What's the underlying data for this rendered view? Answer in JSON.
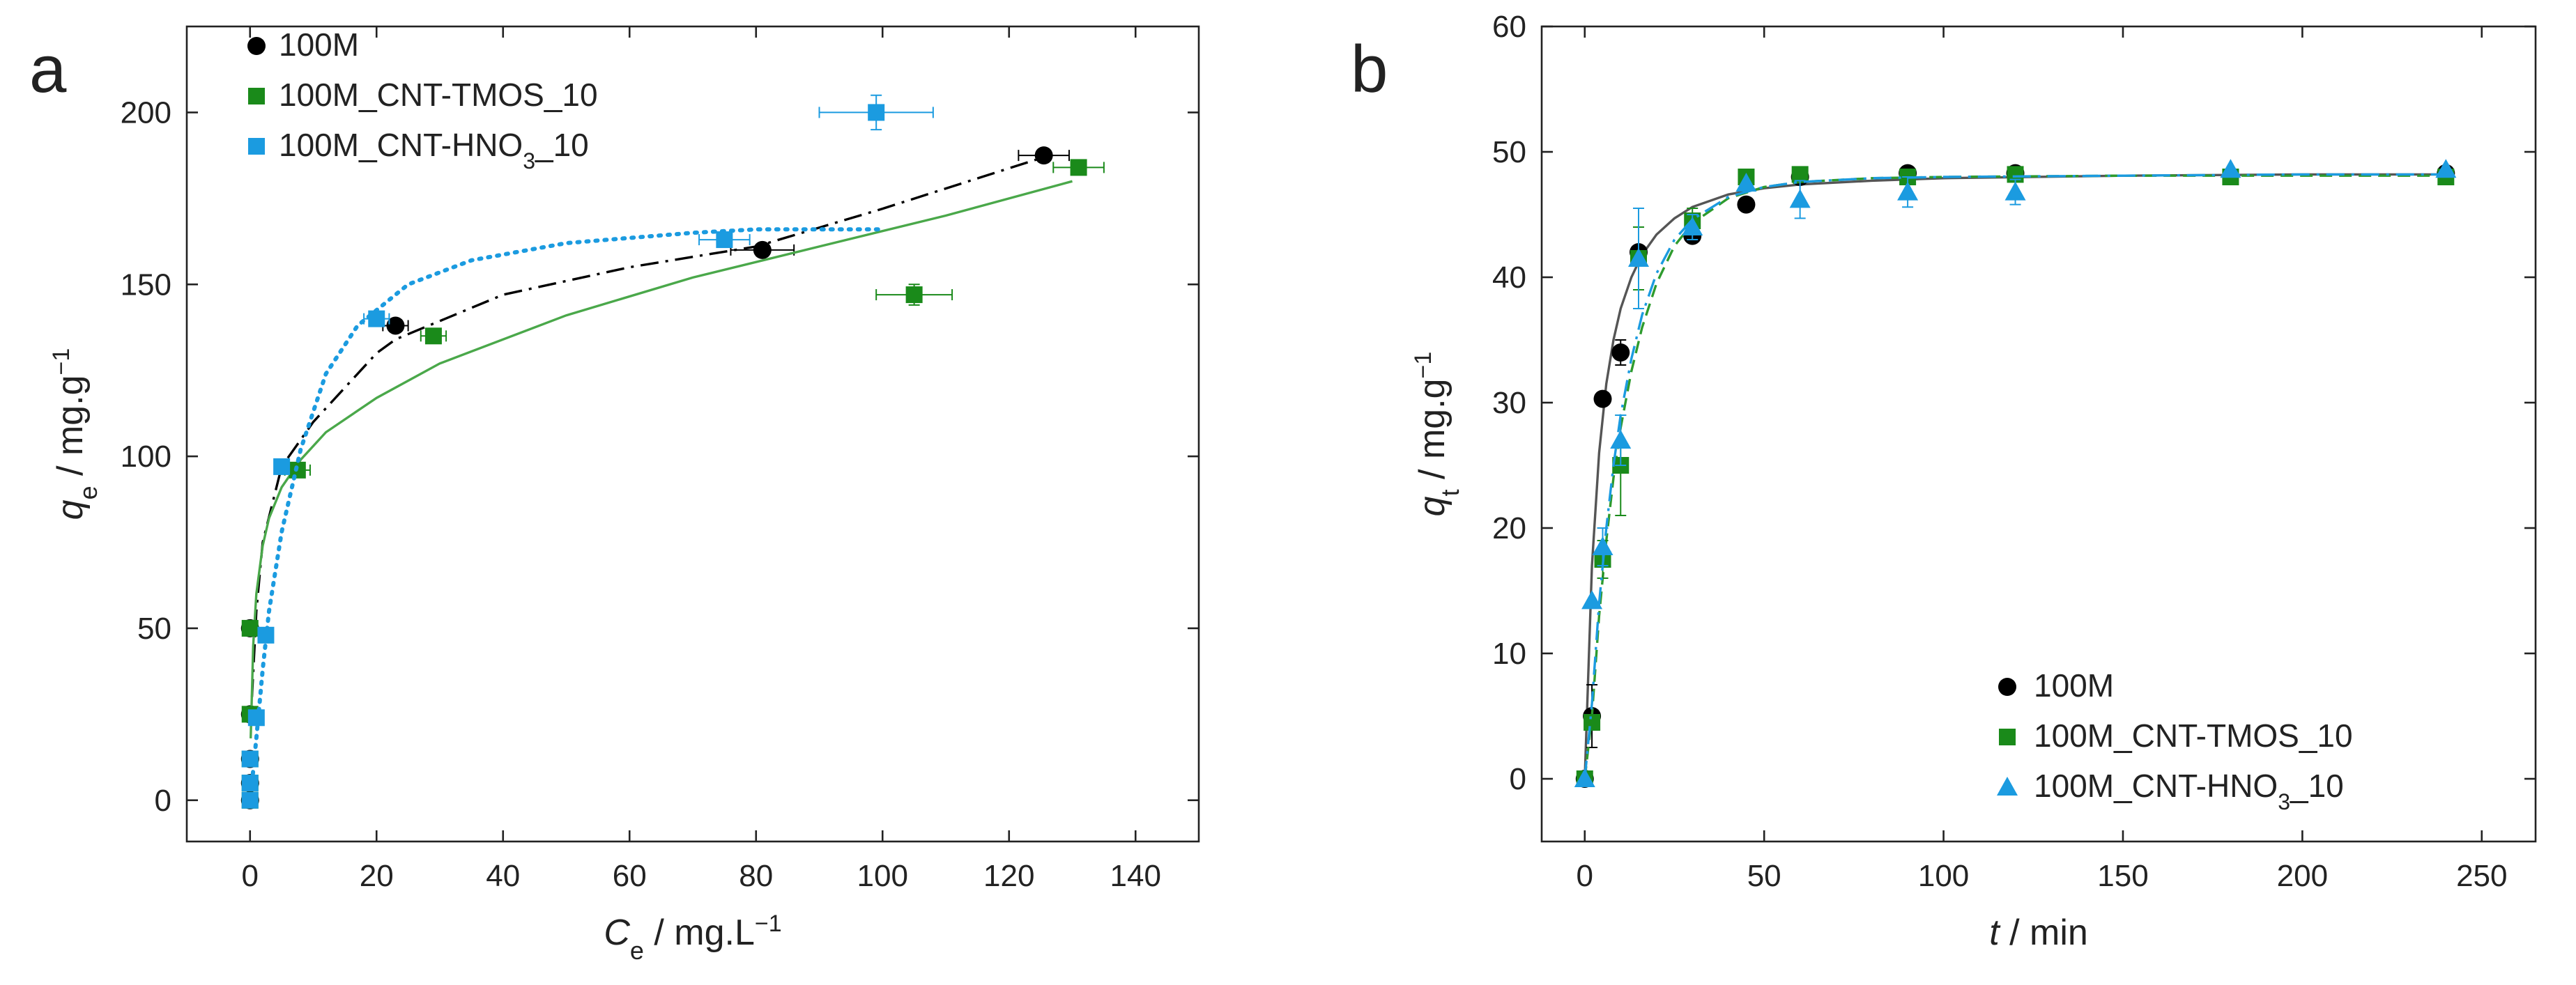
{
  "figure": {
    "panels": [
      {
        "letter": "a",
        "x_label": {
          "sym": "C",
          "sub": "e",
          "unit": " / mg.L",
          "sup": "−1"
        },
        "y_label": {
          "sym": "q",
          "sub": "e",
          "unit": " / mg.g",
          "sup": "−1"
        }
      },
      {
        "letter": "b",
        "x_label": {
          "sym": "t",
          "sub": "",
          "unit": " / min",
          "sup": ""
        },
        "y_label": {
          "sym": "q",
          "sub": "t",
          "unit": " / mg.g",
          "sup": "−1"
        }
      }
    ]
  },
  "chart_data": [
    {
      "type": "scatter",
      "panel": "a",
      "title": "",
      "xlabel": "Ce / mg.L−1",
      "ylabel": "qe / mg.g−1",
      "xlim": [
        -10,
        150
      ],
      "ylim": [
        -12,
        225
      ],
      "xticks": [
        0,
        20,
        40,
        60,
        80,
        100,
        120,
        140
      ],
      "yticks": [
        0,
        50,
        100,
        150,
        200
      ],
      "grid": false,
      "legend_position": "top-left",
      "series": [
        {
          "name": "100M",
          "sub": "",
          "suffix": "",
          "marker": "circle",
          "color": "#000000",
          "points": [
            [
              0,
              0
            ],
            [
              0,
              5
            ],
            [
              0,
              12
            ],
            [
              0,
              25
            ],
            [
              0,
              50
            ],
            [
              23,
              138
            ],
            [
              81,
              160
            ],
            [
              125.5,
              187.5
            ]
          ],
          "x_err": [
            0,
            0,
            0,
            0,
            0,
            2,
            5,
            4
          ],
          "y_err": [
            0,
            0,
            0,
            0,
            0,
            0,
            0,
            0
          ],
          "fit": {
            "style": "dashdot",
            "color": "#000000",
            "x": [
              0.3,
              1,
              2,
              5,
              10,
              20,
              23,
              40,
              60,
              80,
              100,
              125.5
            ],
            "y": [
              30,
              55,
              75,
              97,
              110,
              130,
              134,
              147,
              155,
              161,
              172,
              187
            ]
          }
        },
        {
          "name": "100M_CNT-TMOS_10",
          "sub": "",
          "suffix": "",
          "marker": "square",
          "color": "#1a8a1a",
          "points": [
            [
              0,
              0
            ],
            [
              0,
              5
            ],
            [
              0,
              12
            ],
            [
              0,
              25
            ],
            [
              0,
              50
            ],
            [
              7.5,
              96
            ],
            [
              29,
              135
            ],
            [
              105,
              147
            ],
            [
              131,
              184
            ]
          ],
          "x_err": [
            0,
            0,
            0,
            0,
            0,
            2,
            2,
            6,
            4
          ],
          "y_err": [
            0,
            0,
            0,
            0,
            0,
            0,
            0,
            3,
            0
          ],
          "fit": {
            "style": "solid",
            "color": "#4aa84a",
            "x": [
              0.1,
              0.5,
              1,
              2,
              3,
              5,
              8,
              12,
              20,
              30,
              50,
              70,
              90,
              110,
              130
            ],
            "y": [
              18,
              45,
              60,
              74,
              82,
              91,
              99,
              107,
              117,
              127,
              141,
              152,
              161,
              170,
              180
            ]
          }
        },
        {
          "name": "100M_CNT-HNO",
          "sub": "3",
          "suffix": "_10",
          "marker": "square",
          "color": "#1b9be0",
          "points": [
            [
              0,
              0
            ],
            [
              0,
              5
            ],
            [
              0,
              12
            ],
            [
              1,
              24
            ],
            [
              2.5,
              48
            ],
            [
              5,
              97
            ],
            [
              20,
              140
            ],
            [
              75,
              163
            ],
            [
              99,
              200
            ]
          ],
          "x_err": [
            0,
            0,
            0,
            0,
            0,
            0,
            2,
            4,
            9
          ],
          "y_err": [
            0,
            0,
            0,
            0,
            0,
            0,
            0,
            0,
            5
          ],
          "fit": {
            "style": "dotted",
            "color": "#1b9be0",
            "x": [
              0.3,
              1,
              2,
              3,
              5,
              8,
              12,
              17,
              25,
              35,
              50,
              70,
              80,
              90,
              100
            ],
            "y": [
              5,
              18,
              38,
              55,
              78,
              102,
              124,
              138,
              150,
              157,
              162,
              165,
              166,
              166,
              166
            ]
          }
        }
      ]
    },
    {
      "type": "scatter",
      "panel": "b",
      "title": "",
      "xlabel": "t / min",
      "ylabel": "qt / mg.g−1",
      "xlim": [
        -12,
        265
      ],
      "ylim": [
        -5,
        60
      ],
      "xticks": [
        0,
        50,
        100,
        150,
        200,
        250
      ],
      "yticks": [
        0,
        10,
        20,
        30,
        40,
        50,
        60
      ],
      "grid": false,
      "legend_position": "bottom-right",
      "series": [
        {
          "name": "100M",
          "sub": "",
          "suffix": "",
          "marker": "circle",
          "color": "#000000",
          "points": [
            [
              0,
              0
            ],
            [
              2,
              5
            ],
            [
              5,
              30.3
            ],
            [
              10,
              34
            ],
            [
              15,
              42
            ],
            [
              30,
              43.3
            ],
            [
              45,
              45.8
            ],
            [
              60,
              48
            ],
            [
              90,
              48.3
            ],
            [
              120,
              48.3
            ],
            [
              240,
              48.3
            ]
          ],
          "x_err": [
            0,
            0,
            0,
            0,
            0,
            0,
            0,
            0,
            0,
            0,
            0
          ],
          "y_err": [
            0,
            2.5,
            0,
            1,
            0,
            0,
            0,
            0,
            0,
            0,
            0
          ],
          "fit": {
            "style": "solid",
            "color": "#555555",
            "x": [
              0,
              2,
              4,
              6,
              8,
              10,
              13,
              16,
              20,
              25,
              30,
              40,
              50,
              60,
              80,
              100,
              150,
              200,
              240
            ],
            "y": [
              0,
              17,
              26,
              31.5,
              35,
              37.5,
              40,
              41.8,
              43.4,
              44.7,
              45.6,
              46.6,
              47.1,
              47.4,
              47.7,
              47.9,
              48.1,
              48.2,
              48.2
            ]
          }
        },
        {
          "name": "100M_CNT-TMOS_10",
          "sub": "",
          "suffix": "",
          "marker": "square",
          "color": "#1a8a1a",
          "points": [
            [
              0,
              0
            ],
            [
              2,
              4.5
            ],
            [
              5,
              17.5
            ],
            [
              10,
              25
            ],
            [
              15,
              41.5
            ],
            [
              30,
              44.5
            ],
            [
              45,
              48
            ],
            [
              60,
              48.2
            ],
            [
              90,
              48
            ],
            [
              120,
              48.2
            ],
            [
              180,
              48
            ],
            [
              240,
              48
            ]
          ],
          "x_err": [
            0,
            0,
            0,
            0,
            0,
            0,
            0,
            0,
            0,
            0,
            0,
            0
          ],
          "y_err": [
            0,
            0,
            1.5,
            4,
            2.5,
            1,
            0,
            0,
            0,
            0,
            0,
            0
          ],
          "fit": {
            "style": "dashed",
            "color": "#2e9b2e",
            "x": [
              0,
              2,
              4,
              6,
              8,
              10,
              13,
              16,
              20,
              25,
              30,
              40,
              50,
              60,
              80,
              100,
              150,
              200,
              240
            ],
            "y": [
              0,
              5,
              13,
              19,
              24,
              28,
              32.5,
              36,
              39.5,
              42.5,
              44.3,
              46.3,
              47.2,
              47.6,
              47.9,
              48,
              48.1,
              48.1,
              48.1
            ]
          }
        },
        {
          "name": "100M_CNT-HNO",
          "sub": "3",
          "suffix": "_10",
          "marker": "triangle",
          "color": "#1b9be0",
          "points": [
            [
              0,
              0
            ],
            [
              2,
              14.2
            ],
            [
              5,
              18.5
            ],
            [
              10,
              27
            ],
            [
              15,
              41.5
            ],
            [
              30,
              44
            ],
            [
              45,
              47.5
            ],
            [
              60,
              46.2
            ],
            [
              90,
              46.8
            ],
            [
              120,
              46.8
            ],
            [
              180,
              48.6
            ],
            [
              240,
              48.6
            ]
          ],
          "x_err": [
            0,
            0,
            0,
            0,
            0,
            0,
            0,
            0,
            0,
            0,
            0,
            0
          ],
          "y_err": [
            0,
            0,
            1.5,
            2,
            4,
            1,
            0,
            1.5,
            1.2,
            1,
            0,
            0
          ],
          "fit": {
            "style": "dashdot",
            "color": "#1b9be0",
            "x": [
              0,
              2,
              4,
              6,
              8,
              10,
              13,
              16,
              20,
              25,
              30,
              40,
              50,
              60,
              80,
              100,
              150,
              200,
              240
            ],
            "y": [
              0,
              6,
              14,
              20,
              25,
              29,
              33.5,
              37,
              40.3,
              43,
              44.6,
              46.4,
              47.2,
              47.6,
              47.9,
              48,
              48.1,
              48.2,
              48.2
            ]
          }
        }
      ]
    }
  ]
}
